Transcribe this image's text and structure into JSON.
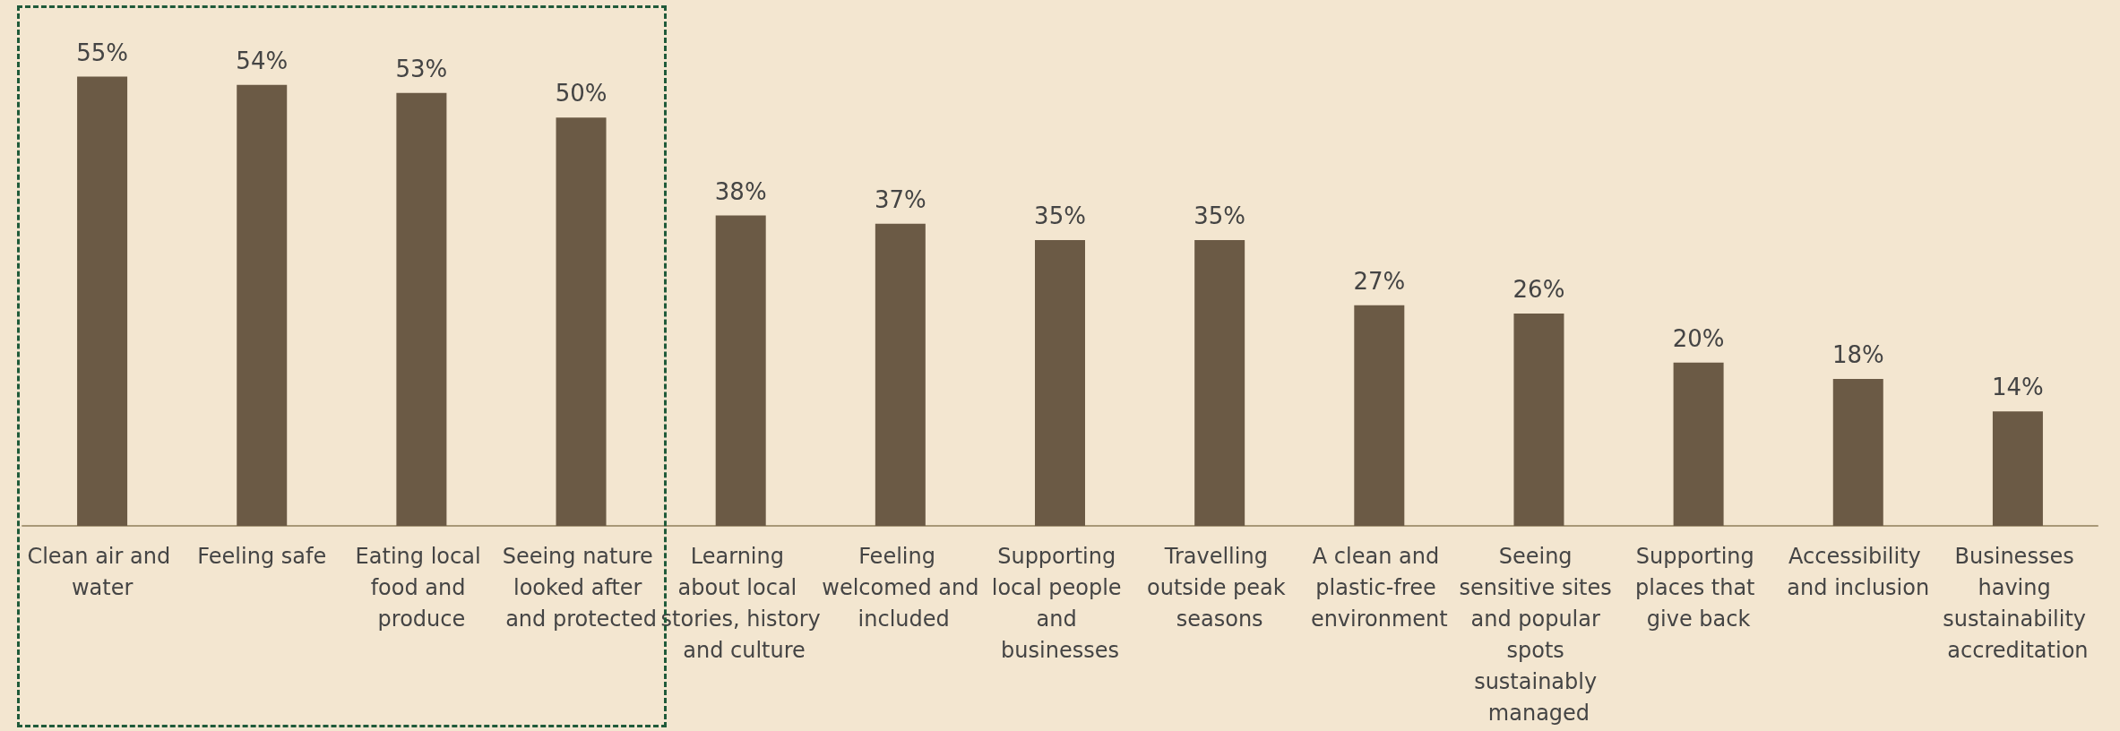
{
  "chart_data": {
    "type": "bar",
    "categories": [
      "Clean air and water",
      "Feeling safe",
      "Eating local food and produce",
      "Seeing nature looked after and protected",
      "Learning about local stories, history and culture",
      "Feeling welcomed and included",
      "Supporting local people and businesses",
      "Travelling outside peak seasons",
      "A clean and plastic-free environment",
      "Seeing sensitive sites and popular spots sustainably managed",
      "Supporting places that give back",
      "Accessibility and inclusion",
      "Businesses having sustainability accreditation"
    ],
    "values": [
      55,
      54,
      53,
      50,
      38,
      37,
      35,
      35,
      27,
      26,
      20,
      18,
      14
    ],
    "value_labels": [
      "55%",
      "54%",
      "53%",
      "50%",
      "38%",
      "37%",
      "35%",
      "35%",
      "27%",
      "26%",
      "20%",
      "18%",
      "14%"
    ],
    "color": "#6b5a45"
  }
}
